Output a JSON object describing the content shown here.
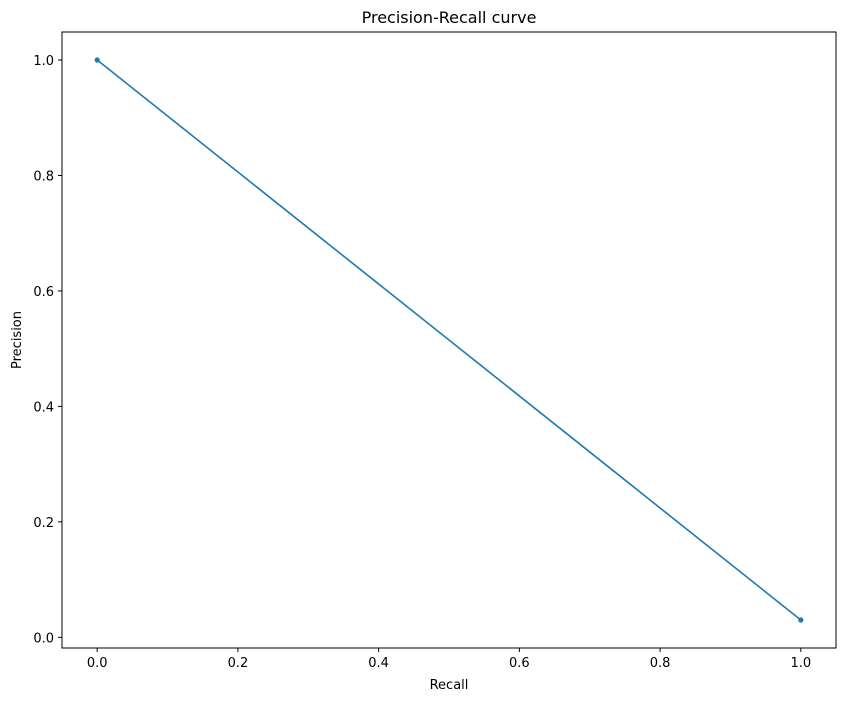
{
  "chart_data": {
    "type": "line",
    "title": "Precision-Recall curve",
    "xlabel": "Recall",
    "ylabel": "Precision",
    "xlim": [
      -0.05,
      1.05
    ],
    "ylim": [
      -0.0185,
      1.0485
    ],
    "xticks": [
      0.0,
      0.2,
      0.4,
      0.6,
      0.8,
      1.0
    ],
    "xtick_labels": [
      "0.0",
      "0.2",
      "0.4",
      "0.6",
      "0.8",
      "1.0"
    ],
    "yticks": [
      0.0,
      0.2,
      0.4,
      0.6,
      0.8,
      1.0
    ],
    "ytick_labels": [
      "0.0",
      "0.2",
      "0.4",
      "0.6",
      "0.8",
      "1.0"
    ],
    "grid": false,
    "series": [
      {
        "color": "#1f77b4",
        "marker": "circle",
        "x": [
          0.0,
          1.0
        ],
        "y": [
          1.0,
          0.03
        ]
      }
    ]
  }
}
